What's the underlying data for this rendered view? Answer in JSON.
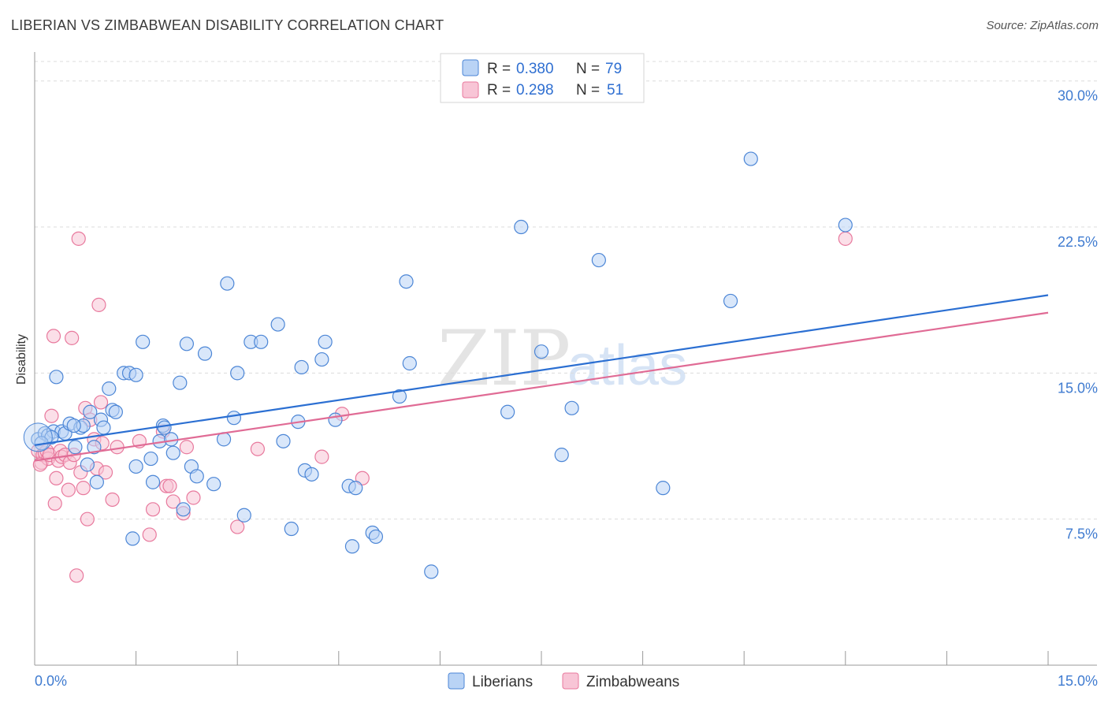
{
  "header": {
    "title": "LIBERIAN VS ZIMBABWEAN DISABILITY CORRELATION CHART",
    "source": "Source: ZipAtlas.com"
  },
  "watermark": {
    "part1": "ZIP",
    "part2": "atlas"
  },
  "colors": {
    "liberians_fill": "#b9d3f5",
    "liberians_stroke": "#4c86d6",
    "liberians_line": "#2b6fd2",
    "zimbabweans_fill": "#f8c5d6",
    "zimbabweans_stroke": "#e8799d",
    "zimbabweans_line": "#e06b95",
    "tick_label": "#3f7bd0",
    "grid": "#dcdcdc"
  },
  "legend": {
    "rows": [
      {
        "r_label": "R =",
        "r_value": "0.380",
        "n_label": "N =",
        "n_value": "79"
      },
      {
        "r_label": "R =",
        "r_value": "0.298",
        "n_label": "N =",
        "n_value": "51"
      }
    ]
  },
  "chart_data": {
    "type": "scatter",
    "title": "LIBERIAN VS ZIMBABWEAN DISABILITY CORRELATION CHART",
    "xlabel": "",
    "ylabel": "Disability",
    "xlim": [
      0,
      15
    ],
    "ylim": [
      0,
      31
    ],
    "x_tick_labels": [
      "0.0%",
      "15.0%"
    ],
    "y_ticks": [
      7.5,
      15.0,
      22.5,
      30.0
    ],
    "y_tick_labels": [
      "7.5%",
      "15.0%",
      "22.5%",
      "30.0%"
    ],
    "grid": "horizontal dashed",
    "legend_position": "bottom-center",
    "series": [
      {
        "name": "Liberians",
        "r": 0.38,
        "n": 79,
        "trend": {
          "x": [
            0,
            15
          ],
          "y": [
            11.3,
            19.0
          ]
        },
        "points": [
          [
            0.05,
            11.6
          ],
          [
            0.15,
            11.9
          ],
          [
            0.2,
            11.8
          ],
          [
            0.28,
            12.0
          ],
          [
            0.32,
            14.8
          ],
          [
            0.4,
            12.0
          ],
          [
            0.45,
            11.9
          ],
          [
            0.52,
            12.4
          ],
          [
            0.6,
            11.2
          ],
          [
            0.68,
            12.2
          ],
          [
            0.72,
            12.3
          ],
          [
            0.78,
            10.3
          ],
          [
            0.82,
            13.0
          ],
          [
            0.88,
            11.2
          ],
          [
            0.92,
            9.4
          ],
          [
            0.98,
            12.6
          ],
          [
            1.02,
            12.2
          ],
          [
            1.1,
            14.2
          ],
          [
            1.15,
            13.1
          ],
          [
            1.2,
            13.0
          ],
          [
            1.32,
            15.0
          ],
          [
            1.4,
            15.0
          ],
          [
            1.5,
            14.9
          ],
          [
            1.6,
            16.6
          ],
          [
            1.72,
            10.6
          ],
          [
            1.85,
            11.5
          ],
          [
            1.9,
            12.3
          ],
          [
            1.92,
            12.2
          ],
          [
            2.02,
            11.6
          ],
          [
            2.05,
            10.9
          ],
          [
            2.15,
            14.5
          ],
          [
            2.25,
            16.5
          ],
          [
            2.32,
            10.2
          ],
          [
            2.4,
            9.7
          ],
          [
            2.52,
            16.0
          ],
          [
            2.65,
            9.3
          ],
          [
            2.8,
            11.6
          ],
          [
            2.85,
            19.6
          ],
          [
            2.95,
            12.7
          ],
          [
            3.0,
            15.0
          ],
          [
            3.2,
            16.6
          ],
          [
            3.35,
            16.6
          ],
          [
            3.6,
            17.5
          ],
          [
            3.68,
            11.5
          ],
          [
            3.8,
            7.0
          ],
          [
            3.9,
            12.5
          ],
          [
            3.95,
            15.3
          ],
          [
            4.0,
            10.0
          ],
          [
            4.1,
            9.8
          ],
          [
            4.25,
            15.7
          ],
          [
            4.3,
            16.6
          ],
          [
            4.45,
            12.6
          ],
          [
            4.65,
            9.2
          ],
          [
            4.75,
            9.1
          ],
          [
            4.7,
            6.1
          ],
          [
            5.0,
            6.8
          ],
          [
            5.05,
            6.6
          ],
          [
            5.4,
            13.8
          ],
          [
            5.5,
            19.7
          ],
          [
            5.55,
            15.5
          ],
          [
            5.87,
            4.8
          ],
          [
            7.0,
            13.0
          ],
          [
            7.2,
            22.5
          ],
          [
            7.5,
            16.1
          ],
          [
            7.8,
            10.8
          ],
          [
            7.95,
            13.2
          ],
          [
            8.35,
            20.8
          ],
          [
            9.3,
            9.1
          ],
          [
            10.3,
            18.7
          ],
          [
            10.6,
            26.0
          ],
          [
            12.0,
            22.6
          ],
          [
            0.58,
            12.3
          ],
          [
            1.5,
            10.2
          ],
          [
            1.75,
            9.4
          ],
          [
            2.2,
            8.0
          ],
          [
            3.1,
            7.7
          ],
          [
            1.45,
            6.5
          ],
          [
            0.25,
            11.7
          ],
          [
            0.1,
            11.4
          ]
        ]
      },
      {
        "name": "Zimbabweans",
        "r": 0.298,
        "n": 51,
        "trend": {
          "x": [
            0,
            15
          ],
          "y": [
            10.5,
            18.1
          ]
        },
        "points": [
          [
            0.05,
            11.0
          ],
          [
            0.1,
            10.4
          ],
          [
            0.12,
            10.8
          ],
          [
            0.15,
            10.9
          ],
          [
            0.18,
            11.0
          ],
          [
            0.2,
            10.6
          ],
          [
            0.22,
            10.8
          ],
          [
            0.25,
            12.8
          ],
          [
            0.28,
            16.9
          ],
          [
            0.3,
            8.3
          ],
          [
            0.32,
            9.6
          ],
          [
            0.35,
            10.5
          ],
          [
            0.38,
            11.0
          ],
          [
            0.4,
            10.7
          ],
          [
            0.45,
            10.8
          ],
          [
            0.5,
            9.0
          ],
          [
            0.52,
            10.4
          ],
          [
            0.55,
            16.8
          ],
          [
            0.58,
            10.8
          ],
          [
            0.62,
            4.6
          ],
          [
            0.65,
            21.9
          ],
          [
            0.68,
            9.9
          ],
          [
            0.72,
            9.1
          ],
          [
            0.75,
            13.2
          ],
          [
            0.78,
            7.5
          ],
          [
            0.82,
            12.6
          ],
          [
            0.88,
            11.6
          ],
          [
            0.92,
            10.1
          ],
          [
            0.95,
            18.5
          ],
          [
            0.98,
            13.5
          ],
          [
            1.0,
            11.4
          ],
          [
            1.05,
            9.9
          ],
          [
            1.15,
            8.5
          ],
          [
            1.22,
            11.2
          ],
          [
            1.55,
            11.5
          ],
          [
            1.7,
            6.7
          ],
          [
            1.75,
            8.0
          ],
          [
            1.9,
            12.0
          ],
          [
            1.95,
            9.2
          ],
          [
            2.0,
            9.2
          ],
          [
            2.05,
            8.4
          ],
          [
            2.2,
            7.8
          ],
          [
            2.25,
            11.2
          ],
          [
            2.35,
            8.6
          ],
          [
            3.0,
            7.1
          ],
          [
            3.3,
            11.1
          ],
          [
            4.25,
            10.7
          ],
          [
            4.55,
            12.9
          ],
          [
            4.85,
            9.6
          ],
          [
            12.0,
            21.9
          ],
          [
            0.08,
            10.3
          ]
        ]
      }
    ]
  },
  "bottom_legend": {
    "items": [
      {
        "label": "Liberians"
      },
      {
        "label": "Zimbabweans"
      }
    ]
  }
}
